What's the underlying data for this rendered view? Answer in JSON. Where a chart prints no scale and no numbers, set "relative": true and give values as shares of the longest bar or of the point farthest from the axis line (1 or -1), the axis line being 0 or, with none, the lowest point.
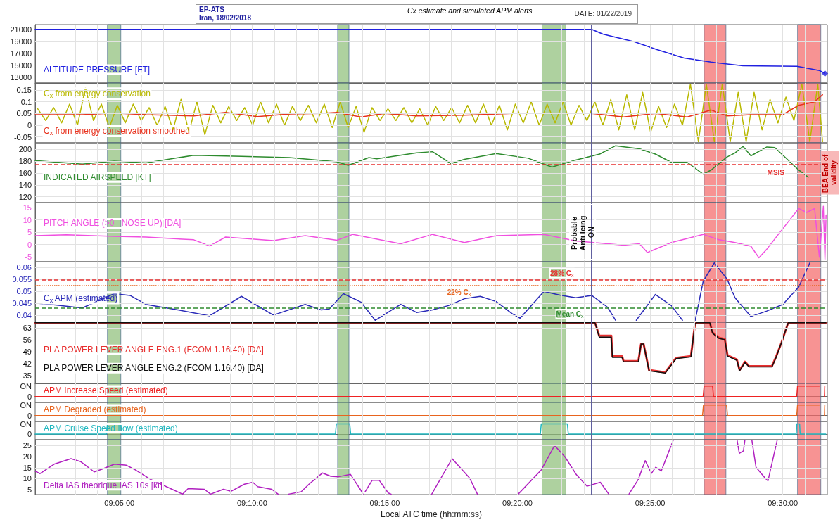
{
  "chart_data": [
    {
      "type": "line",
      "title": "Cx estimate and simulated APM alerts",
      "annotations": [
        "EP-ATS",
        "Iran, 18/02/2018",
        "DATE: 01/22/2019"
      ],
      "xlim": [
        9.0304,
        9.528
      ],
      "ylim": [
        12000,
        21800
      ],
      "yticks": [
        13000,
        15000,
        17000,
        19000,
        21000
      ],
      "xticks": [
        9.04167,
        9.05556,
        9.06944,
        9.08333,
        9.09722,
        9.11111,
        9.125,
        9.13889,
        9.15278,
        9.16667,
        9.18056,
        9.19444,
        9.20833,
        9.22222,
        9.23611,
        9.25,
        9.26389,
        9.27778,
        9.29167,
        9.30556,
        9.31944,
        9.33333,
        9.34722,
        9.36111,
        9.375,
        9.38889,
        9.40278,
        9.41667,
        9.43056,
        9.44444,
        9.45833,
        9.47222,
        9.48611,
        9.5,
        9.51389
      ],
      "tick_labels": "y",
      "grid": true,
      "series": [
        {
          "name": "ALTITUDE PRESSURE [FT]",
          "color": "#2020e0",
          "x": [
            9.0304,
            9.38,
            9.387,
            9.407,
            9.421,
            9.438,
            9.455,
            9.475,
            9.509,
            9.523,
            9.5265
          ],
          "values": [
            21000,
            21000,
            20200,
            18900,
            17600,
            16200,
            15500,
            14900,
            14800,
            14100,
            13600
          ]
        },
        {
          "type": "scatter",
          "marker": "diamond",
          "color": "#2020e0",
          "x": [
            9.5265
          ],
          "values": [
            13600
          ]
        }
      ],
      "bands": [
        {
          "axis": "x",
          "from": 9.0758,
          "to": 9.0842,
          "color": "#8fbf7a"
        },
        {
          "axis": "x",
          "from": 9.2204,
          "to": 9.2275,
          "color": "#8fbf7a"
        },
        {
          "axis": "x",
          "from": 9.3488,
          "to": 9.3638,
          "color": "#8fbf7a"
        },
        {
          "axis": "x",
          "from": 9.4506,
          "to": 9.4643,
          "color": "#f46a6a"
        },
        {
          "axis": "x",
          "from": 9.5093,
          "to": 9.5239,
          "color": "#f46a6a"
        }
      ],
      "ref_lines": [
        {
          "axis": "x",
          "value": 9.3796,
          "color": "#6060a0",
          "line_style": "solid"
        }
      ]
    },
    {
      "type": "line",
      "xlim": [
        9.0304,
        9.528
      ],
      "ylim": [
        -0.075,
        0.18
      ],
      "yticks": [
        -0.05,
        0,
        0.05,
        0.1,
        0.15
      ],
      "xticks": [
        9.04167,
        9.05556,
        9.06944,
        9.08333,
        9.09722,
        9.11111,
        9.125,
        9.13889,
        9.15278,
        9.16667,
        9.18056,
        9.19444,
        9.20833,
        9.22222,
        9.23611,
        9.25,
        9.26389,
        9.27778,
        9.29167,
        9.30556,
        9.31944,
        9.33333,
        9.34722,
        9.36111,
        9.375,
        9.38889,
        9.40278,
        9.41667,
        9.43056,
        9.44444,
        9.45833,
        9.47222,
        9.48611,
        9.5,
        9.51389
      ],
      "tick_labels": "y",
      "grid": true,
      "series": [
        {
          "name": "C$_{x}$ from energy conservation",
          "color": "#b8b800",
          "x": [
            9.032,
            9.037,
            9.042,
            9.047,
            9.052,
            9.057,
            9.062,
            9.067,
            9.072,
            9.077,
            9.082,
            9.087,
            9.092,
            9.097,
            9.102,
            9.107,
            9.112,
            9.117,
            9.122,
            9.127,
            9.132,
            9.137,
            9.142,
            9.147,
            9.152,
            9.157,
            9.162,
            9.167,
            9.172,
            9.177,
            9.182,
            9.187,
            9.192,
            9.197,
            9.202,
            9.207,
            9.212,
            9.217,
            9.222,
            9.227,
            9.232,
            9.237,
            9.242,
            9.247,
            9.252,
            9.257,
            9.262,
            9.267,
            9.272,
            9.277,
            9.282,
            9.287,
            9.292,
            9.297,
            9.302,
            9.307,
            9.312,
            9.317,
            9.322,
            9.327,
            9.332,
            9.337,
            9.342,
            9.347,
            9.352,
            9.357,
            9.362,
            9.367,
            9.372,
            9.377,
            9.382,
            9.387,
            9.392,
            9.397,
            9.402,
            9.407,
            9.412,
            9.417,
            9.422,
            9.427,
            9.432,
            9.437,
            9.442,
            9.447,
            9.452,
            9.457,
            9.462,
            9.467,
            9.472,
            9.477,
            9.482,
            9.487,
            9.492,
            9.497,
            9.502,
            9.507,
            9.512,
            9.517,
            9.522,
            9.525
          ],
          "values": [
            0.07,
            0.02,
            0.075,
            0.01,
            0.09,
            0,
            0.16,
            0.02,
            0.09,
            -0.01,
            0.085,
            0.01,
            0.09,
            0.02,
            0.075,
            0,
            0.08,
            -0.02,
            0.11,
            -0.03,
            0.1,
            -0.04,
            0.085,
            0.01,
            0.08,
            0.02,
            0.075,
            0,
            0.1,
            0.01,
            0.09,
            0,
            0.08,
            0.02,
            0.085,
            0.01,
            0.09,
            -0.01,
            0.1,
            -0.01,
            0.08,
            -0.03,
            0.075,
            0.02,
            0.07,
            0.02,
            0.075,
            0.01,
            0.07,
            0,
            0.08,
            0.02,
            0.075,
            0.01,
            0.085,
            0.01,
            0.09,
            0,
            0.085,
            -0.02,
            0.09,
            0.01,
            0.1,
            0,
            0.09,
            0.01,
            0.1,
            0,
            0.085,
            0.02,
            0.1,
            0,
            0.11,
            -0.02,
            0.13,
            -0.02,
            0.14,
            -0.03,
            0.08,
            -0.01,
            0.09,
            0,
            0.175,
            -0.07,
            0.175,
            -0.07,
            0.175,
            -0.07,
            0.14,
            -0.07,
            0.14,
            -0.02,
            0.11,
            0.01,
            0.12,
            0.02,
            0.175,
            -0.07,
            0.175,
            -0.07
          ]
        },
        {
          "name": "C$_{x}$ from energy conservation smoothed",
          "color": "#e8321e",
          "x": [
            9.0304,
            9.06,
            9.08,
            9.1,
            9.13,
            9.15,
            9.17,
            9.19,
            9.21,
            9.22,
            9.235,
            9.25,
            9.27,
            9.3,
            9.33,
            9.36,
            9.38,
            9.4,
            9.42,
            9.44,
            9.455,
            9.465,
            9.48,
            9.5,
            9.51,
            9.52,
            9.525
          ],
          "values": [
            0.045,
            0.045,
            0.052,
            0.045,
            0.04,
            0.055,
            0.037,
            0.048,
            0.05,
            0.055,
            0.035,
            0.05,
            0.04,
            0.043,
            0.05,
            0.05,
            0.05,
            0.035,
            0.05,
            0.035,
            0.065,
            0.04,
            0.045,
            0.045,
            0.085,
            0.1,
            0.13
          ]
        }
      ],
      "bands": [
        {
          "axis": "x",
          "from": 9.0758,
          "to": 9.0842,
          "color": "#8fbf7a"
        },
        {
          "axis": "x",
          "from": 9.2204,
          "to": 9.2275,
          "color": "#8fbf7a"
        },
        {
          "axis": "x",
          "from": 9.3488,
          "to": 9.3638,
          "color": "#8fbf7a"
        },
        {
          "axis": "x",
          "from": 9.4506,
          "to": 9.4643,
          "color": "#f46a6a"
        },
        {
          "axis": "x",
          "from": 9.5093,
          "to": 9.5239,
          "color": "#f46a6a"
        }
      ],
      "ref_lines": [
        {
          "axis": "x",
          "value": 9.3796,
          "color": "#6060a0",
          "line_style": "solid"
        }
      ]
    },
    {
      "type": "line",
      "xlim": [
        9.0304,
        9.528
      ],
      "ylim": [
        110,
        211
      ],
      "yticks": [
        120,
        140,
        160,
        180,
        200
      ],
      "xticks": [
        9.04167,
        9.05556,
        9.06944,
        9.08333,
        9.09722,
        9.11111,
        9.125,
        9.13889,
        9.15278,
        9.16667,
        9.18056,
        9.19444,
        9.20833,
        9.22222,
        9.23611,
        9.25,
        9.26389,
        9.27778,
        9.29167,
        9.30556,
        9.31944,
        9.33333,
        9.34722,
        9.36111,
        9.375,
        9.38889,
        9.40278,
        9.41667,
        9.43056,
        9.44444,
        9.45833,
        9.47222,
        9.48611,
        9.5,
        9.51389
      ],
      "tick_labels": "y",
      "grid": true,
      "series": [
        {
          "name": "INDICATED AIRSPEED [KT]",
          "color": "#2e8b2e",
          "x": [
            9.0304,
            9.06,
            9.08,
            9.1,
            9.13,
            9.16,
            9.19,
            9.22,
            9.227,
            9.24,
            9.245,
            9.27,
            9.28,
            9.2915,
            9.3,
            9.32,
            9.34,
            9.355,
            9.37,
            9.385,
            9.395,
            9.41,
            9.42,
            9.43,
            9.44,
            9.45,
            9.455,
            9.465,
            9.47,
            9.475,
            9.48,
            9.49,
            9.495,
            9.51,
            9.516
          ],
          "values": [
            181,
            175,
            180,
            177,
            190,
            188,
            186,
            179,
            173,
            186,
            184,
            194,
            196,
            176,
            183,
            193,
            185,
            170,
            182,
            192,
            206,
            201,
            192,
            178,
            178,
            158,
            165,
            187,
            194,
            205,
            189,
            204,
            203,
            165,
            153
          ]
        }
      ],
      "bands": [
        {
          "axis": "x",
          "from": 9.0758,
          "to": 9.0842,
          "color": "#8fbf7a"
        },
        {
          "axis": "x",
          "from": 9.2204,
          "to": 9.2275,
          "color": "#8fbf7a"
        },
        {
          "axis": "x",
          "from": 9.3488,
          "to": 9.3638,
          "color": "#8fbf7a"
        },
        {
          "axis": "x",
          "from": 9.4506,
          "to": 9.4643,
          "color": "#f46a6a"
        },
        {
          "axis": "x",
          "from": 9.5093,
          "to": 9.5239,
          "color": "#f46a6a",
          "label": "BEA End of validity"
        }
      ],
      "ref_lines": [
        {
          "axis": "y",
          "value": 175,
          "label": "MSIS",
          "color": "#e83030",
          "line_style": "dashed"
        },
        {
          "axis": "x",
          "value": 9.3796,
          "color": "#6060a0",
          "line_style": "solid"
        }
      ]
    },
    {
      "type": "line",
      "xlim": [
        9.0304,
        9.528
      ],
      "ylim": [
        -7,
        17
      ],
      "yticks": [
        -5,
        0,
        5,
        10,
        15
      ],
      "xticks": [
        9.04167,
        9.05556,
        9.06944,
        9.08333,
        9.09722,
        9.11111,
        9.125,
        9.13889,
        9.15278,
        9.16667,
        9.18056,
        9.19444,
        9.20833,
        9.22222,
        9.23611,
        9.25,
        9.26389,
        9.27778,
        9.29167,
        9.30556,
        9.31944,
        9.33333,
        9.34722,
        9.36111,
        9.375,
        9.38889,
        9.40278,
        9.41667,
        9.43056,
        9.44444,
        9.45833,
        9.47222,
        9.48611,
        9.5,
        9.51389
      ],
      "tick_labels": "y",
      "grid": true,
      "series": [
        {
          "name": "PITCH ANGLE (>0= NOSE UP) [DA]",
          "color": "#f050e0",
          "x": [
            9.0304,
            9.05,
            9.08,
            9.1,
            9.13,
            9.14,
            9.15,
            9.18,
            9.2,
            9.22,
            9.23,
            9.26,
            9.28,
            9.3,
            9.32,
            9.35,
            9.37,
            9.4,
            9.41,
            9.415,
            9.43,
            9.45,
            9.46,
            9.47,
            9.48,
            9.485,
            9.49,
            9.5,
            9.51,
            9.515,
            9.52,
            9.523,
            9.5255,
            9.5265,
            9.5272
          ],
          "values": [
            3.6,
            3.9,
            3.3,
            3,
            1.9,
            -0.6,
            3,
            1.6,
            3.6,
            1.7,
            4.1,
            0.3,
            4.1,
            0.8,
            3.6,
            4.1,
            1.4,
            -0.3,
            0.3,
            -3.3,
            0.8,
            4.1,
            1.9,
            0.8,
            -0.7,
            -5.4,
            -1.9,
            6.4,
            14.6,
            13,
            14.6,
            -5.2,
            15.5,
            -6,
            12
          ]
        }
      ],
      "bands": [
        {
          "axis": "x",
          "from": 9.0758,
          "to": 9.0842,
          "color": "#8fbf7a"
        },
        {
          "axis": "x",
          "from": 9.2204,
          "to": 9.2275,
          "color": "#8fbf7a"
        },
        {
          "axis": "x",
          "from": 9.3488,
          "to": 9.3638,
          "color": "#8fbf7a"
        },
        {
          "axis": "x",
          "from": 9.4506,
          "to": 9.4643,
          "color": "#f46a6a"
        },
        {
          "axis": "x",
          "from": 9.5093,
          "to": 9.5239,
          "color": "#f46a6a"
        }
      ],
      "ref_lines": [
        {
          "axis": "x",
          "value": 9.3796,
          "label": "Probable Anti Icing ON",
          "color": "#6060a0",
          "line_style": "solid"
        }
      ]
    },
    {
      "type": "line",
      "xlim": [
        9.0304,
        9.528
      ],
      "ylim": [
        0.037,
        0.0625
      ],
      "yticks": [
        0.04,
        0.045,
        0.05,
        0.055,
        0.06
      ],
      "xticks": [
        9.04167,
        9.05556,
        9.06944,
        9.08333,
        9.09722,
        9.11111,
        9.125,
        9.13889,
        9.15278,
        9.16667,
        9.18056,
        9.19444,
        9.20833,
        9.22222,
        9.23611,
        9.25,
        9.26389,
        9.27778,
        9.29167,
        9.30556,
        9.31944,
        9.33333,
        9.34722,
        9.36111,
        9.375,
        9.38889,
        9.40278,
        9.41667,
        9.43056,
        9.44444,
        9.45833,
        9.47222,
        9.48611,
        9.5,
        9.51389
      ],
      "tick_labels": "y",
      "grid": true,
      "series": [
        {
          "name": "C$_{x}$ APM (estimated)",
          "color": "#2a2ab8",
          "x": [
            9.0304,
            9.04,
            9.06,
            9.08,
            9.09,
            9.1,
            9.12,
            9.14,
            9.16,
            9.18,
            9.2,
            9.21,
            9.215,
            9.224,
            9.235,
            9.244,
            9.26,
            9.27,
            9.28,
            9.29,
            9.3,
            9.31,
            9.32,
            9.33,
            9.335,
            9.35,
            9.36,
            9.37,
            9.38,
            9.39,
            9.395,
            9.401,
            9.408,
            9.42,
            9.43,
            9.437,
            9.441,
            9.445,
            9.45,
            9.457,
            9.465,
            9.47,
            9.48,
            9.49,
            9.5,
            9.51,
            9.517
          ],
          "values": [
            0.0451,
            0.0445,
            0.043,
            0.049,
            0.0483,
            0.0445,
            0.0422,
            0.0397,
            0.0479,
            0.04,
            0.0445,
            0.0422,
            0.0425,
            0.049,
            0.0455,
            0.0378,
            0.0445,
            0.0411,
            0.0422,
            0.044,
            0.0469,
            0.0479,
            0.0457,
            0.0406,
            0.0387,
            0.05,
            0.0484,
            0.0473,
            0.0483,
            0.0433,
            0.0378,
            null,
            0.0378,
            0.0487,
            0.044,
            0.0378,
            null,
            0.0378,
            0.0542,
            0.062,
            0.0552,
            0.0473,
            0.0394,
            0.0417,
            0.0445,
            0.0518,
            0.062
          ]
        }
      ],
      "bands": [
        {
          "axis": "x",
          "from": 9.0758,
          "to": 9.0842,
          "color": "#8fbf7a"
        },
        {
          "axis": "x",
          "from": 9.2204,
          "to": 9.2275,
          "color": "#8fbf7a"
        },
        {
          "axis": "x",
          "from": 9.3488,
          "to": 9.3638,
          "color": "#8fbf7a"
        },
        {
          "axis": "x",
          "from": 9.4506,
          "to": 9.4643,
          "color": "#f46a6a"
        },
        {
          "axis": "x",
          "from": 9.5093,
          "to": 9.5239,
          "color": "#f46a6a"
        }
      ],
      "ref_lines": [
        {
          "axis": "y",
          "value": 0.055,
          "label": "28% C$_{x}$",
          "color": "#e83030",
          "line_style": "dashed"
        },
        {
          "axis": "y",
          "value": 0.0524,
          "label": "22% C$_{x}$",
          "color": "#e8641e",
          "line_style": "dotted"
        },
        {
          "axis": "y",
          "value": 0.0431,
          "label": "Mean C$_{x}$",
          "color": "#2e8b2e",
          "line_style": "dashed"
        },
        {
          "axis": "x",
          "value": 9.3796,
          "color": "#6060a0",
          "line_style": "solid"
        }
      ]
    },
    {
      "type": "line",
      "xlim": [
        9.0304,
        9.528
      ],
      "ylim": [
        30.5,
        66.3
      ],
      "yticks": [
        35,
        42,
        49,
        56,
        63
      ],
      "xticks": [
        9.04167,
        9.05556,
        9.06944,
        9.08333,
        9.09722,
        9.11111,
        9.125,
        9.13889,
        9.15278,
        9.16667,
        9.18056,
        9.19444,
        9.20833,
        9.22222,
        9.23611,
        9.25,
        9.26389,
        9.27778,
        9.29167,
        9.30556,
        9.31944,
        9.33333,
        9.34722,
        9.36111,
        9.375,
        9.38889,
        9.40278,
        9.41667,
        9.43056,
        9.44444,
        9.45833,
        9.47222,
        9.48611,
        9.5,
        9.51389
      ],
      "tick_labels": "y",
      "grid": true,
      "series": [
        {
          "name": "PLA POWER LEVER ANGLE ENG.1 (FCOM 1.16.40) [DA]",
          "color": "#e83030",
          "x": [
            9.0304,
            9.3821,
            9.3847,
            9.3923,
            9.393,
            9.3991,
            9.4,
            9.4093,
            9.411,
            9.4126,
            9.416,
            9.4262,
            9.433,
            9.4423,
            9.4449,
            9.446,
            9.4542,
            9.4559,
            9.46,
            9.4636,
            9.4653,
            9.4712,
            9.4729,
            9.4763,
            9.4788,
            9.4932,
            9.4958,
            9.4992,
            9.5034,
            9.5271
          ],
          "values": [
            66,
            66,
            58.4,
            58.4,
            46.3,
            46.3,
            43.6,
            43.6,
            53.5,
            53.5,
            38.3,
            37,
            45.4,
            46.4,
            65.5,
            66,
            66,
            60.3,
            57.2,
            56.4,
            46.9,
            44.4,
            38.3,
            43.2,
            40.6,
            40.6,
            46.1,
            54.4,
            66,
            66
          ]
        },
        {
          "name": "PLA POWER LEVER ANGLE ENG.2 (FCOM 1.16.40) [DA]",
          "color": "#101010",
          "x": [
            9.0304,
            9.3821,
            9.3847,
            9.3923,
            9.393,
            9.3991,
            9.4,
            9.4093,
            9.411,
            9.4126,
            9.416,
            9.4262,
            9.433,
            9.4423,
            9.4449,
            9.446,
            9.4542,
            9.4559,
            9.46,
            9.4636,
            9.4653,
            9.4712,
            9.4729,
            9.4763,
            9.4788,
            9.4932,
            9.4958,
            9.4992,
            9.5034,
            9.5271
          ],
          "values": [
            66,
            66,
            57.6,
            57.6,
            45.7,
            45.7,
            43.2,
            43.2,
            53.5,
            53.5,
            37.9,
            36.6,
            45,
            46,
            65.5,
            66,
            66,
            59.9,
            56.8,
            56,
            46.5,
            44,
            37.9,
            42.8,
            40.2,
            40.2,
            45.7,
            54.4,
            66,
            66
          ]
        }
      ],
      "bands": [
        {
          "axis": "x",
          "from": 9.0758,
          "to": 9.0842,
          "color": "#8fbf7a"
        },
        {
          "axis": "x",
          "from": 9.2204,
          "to": 9.2275,
          "color": "#8fbf7a"
        },
        {
          "axis": "x",
          "from": 9.3488,
          "to": 9.3638,
          "color": "#8fbf7a"
        },
        {
          "axis": "x",
          "from": 9.4506,
          "to": 9.4643,
          "color": "#f46a6a"
        },
        {
          "axis": "x",
          "from": 9.5093,
          "to": 9.5239,
          "color": "#f46a6a"
        }
      ],
      "ref_lines": [
        {
          "axis": "x",
          "value": 9.3796,
          "color": "#6060a0",
          "line_style": "solid"
        }
      ]
    },
    {
      "type": "line",
      "relative": true,
      "annotations": [
        "ON",
        "0"
      ],
      "xlim": [
        9.0304,
        9.528
      ],
      "xticks": [
        9.04167,
        9.05556,
        9.06944,
        9.08333,
        9.09722,
        9.11111,
        9.125,
        9.13889,
        9.15278,
        9.16667,
        9.18056,
        9.19444,
        9.20833,
        9.22222,
        9.23611,
        9.25,
        9.26389,
        9.27778,
        9.29167,
        9.30556,
        9.31944,
        9.33333,
        9.34722,
        9.36111,
        9.375,
        9.38889,
        9.40278,
        9.41667,
        9.43056,
        9.44444,
        9.45833,
        9.47222,
        9.48611,
        9.5,
        9.51389
      ],
      "tick_labels": "y",
      "grid": "x",
      "series": [
        {
          "name": "APM Increase Speed (estimated)",
          "color": "#ee2222",
          "x": [
            9.0304,
            9.45,
            9.4506,
            9.4559,
            9.4565,
            9.5088,
            9.5093,
            9.5229,
            9.5245,
            9.5262,
            9.5264
          ],
          "values": [
            0,
            0,
            1,
            1,
            0,
            0,
            1,
            1,
            null,
            0,
            1
          ]
        }
      ],
      "bands": [
        {
          "axis": "x",
          "from": 9.0758,
          "to": 9.0842,
          "color": "#8fbf7a"
        },
        {
          "axis": "x",
          "from": 9.2204,
          "to": 9.2275,
          "color": "#8fbf7a"
        },
        {
          "axis": "x",
          "from": 9.3488,
          "to": 9.3638,
          "color": "#8fbf7a"
        },
        {
          "axis": "x",
          "from": 9.4506,
          "to": 9.4643,
          "color": "#f46a6a"
        },
        {
          "axis": "x",
          "from": 9.5093,
          "to": 9.5239,
          "color": "#f46a6a"
        }
      ],
      "ref_lines": [
        {
          "axis": "x",
          "value": 9.3796,
          "color": "#6060a0",
          "line_style": "solid"
        }
      ]
    },
    {
      "type": "line",
      "relative": true,
      "annotations": [
        "ON",
        "0"
      ],
      "xlim": [
        9.0304,
        9.528
      ],
      "xticks": [
        9.04167,
        9.05556,
        9.06944,
        9.08333,
        9.09722,
        9.11111,
        9.125,
        9.13889,
        9.15278,
        9.16667,
        9.18056,
        9.19444,
        9.20833,
        9.22222,
        9.23611,
        9.25,
        9.26389,
        9.27778,
        9.29167,
        9.30556,
        9.31944,
        9.33333,
        9.34722,
        9.36111,
        9.375,
        9.38889,
        9.40278,
        9.41667,
        9.43056,
        9.44444,
        9.45833,
        9.47222,
        9.48611,
        9.5,
        9.51389
      ],
      "tick_labels": "y",
      "grid": "x",
      "series": [
        {
          "name": "APM Degraded (estimated)",
          "color": "#e8641e",
          "x": [
            9.0304,
            9.4496,
            9.4502,
            9.4647,
            9.4653,
            9.5088,
            9.5093,
            9.5229,
            9.5245,
            9.5262,
            9.5264
          ],
          "values": [
            0,
            0,
            1,
            1,
            0,
            0,
            1,
            1,
            null,
            0,
            1
          ]
        }
      ],
      "bands": [
        {
          "axis": "x",
          "from": 9.0758,
          "to": 9.0842,
          "color": "#8fbf7a"
        },
        {
          "axis": "x",
          "from": 9.2204,
          "to": 9.2275,
          "color": "#8fbf7a"
        },
        {
          "axis": "x",
          "from": 9.3488,
          "to": 9.3638,
          "color": "#8fbf7a"
        },
        {
          "axis": "x",
          "from": 9.4506,
          "to": 9.4643,
          "color": "#f46a6a"
        },
        {
          "axis": "x",
          "from": 9.5093,
          "to": 9.5239,
          "color": "#f46a6a"
        }
      ],
      "ref_lines": [
        {
          "axis": "x",
          "value": 9.3796,
          "color": "#6060a0",
          "line_style": "solid"
        }
      ]
    },
    {
      "type": "line",
      "relative": true,
      "annotations": [
        "ON",
        "0"
      ],
      "xlim": [
        9.0304,
        9.528
      ],
      "xticks": [
        9.04167,
        9.05556,
        9.06944,
        9.08333,
        9.09722,
        9.11111,
        9.125,
        9.13889,
        9.15278,
        9.16667,
        9.18056,
        9.19444,
        9.20833,
        9.22222,
        9.23611,
        9.25,
        9.26389,
        9.27778,
        9.29167,
        9.30556,
        9.31944,
        9.33333,
        9.34722,
        9.36111,
        9.375,
        9.38889,
        9.40278,
        9.41667,
        9.43056,
        9.44444,
        9.45833,
        9.47222,
        9.48611,
        9.5,
        9.51389
      ],
      "tick_labels": "y",
      "grid": "x",
      "series": [
        {
          "name": "APM Cruise Speed Low (estimated)",
          "color": "#20b8c0",
          "x": [
            9.0304,
            9.0752,
            9.0758,
            9.0842,
            9.0848,
            9.219,
            9.2196,
            9.228,
            9.2286,
            9.3477,
            9.3483,
            9.3647,
            9.3653,
            9.5085,
            9.5088,
            9.5106,
            9.5109,
            9.527
          ],
          "values": [
            0,
            0,
            1,
            1,
            0,
            0,
            1,
            1,
            0,
            0,
            1,
            1,
            0,
            0,
            1,
            1,
            0,
            0
          ]
        }
      ],
      "bands": [
        {
          "axis": "x",
          "from": 9.0758,
          "to": 9.0842,
          "color": "#8fbf7a"
        },
        {
          "axis": "x",
          "from": 9.2204,
          "to": 9.2275,
          "color": "#8fbf7a"
        },
        {
          "axis": "x",
          "from": 9.3488,
          "to": 9.3638,
          "color": "#8fbf7a"
        },
        {
          "axis": "x",
          "from": 9.4506,
          "to": 9.4643,
          "color": "#f46a6a"
        },
        {
          "axis": "x",
          "from": 9.5093,
          "to": 9.5239,
          "color": "#f46a6a"
        }
      ],
      "ref_lines": [
        {
          "axis": "x",
          "value": 9.3796,
          "color": "#6060a0",
          "line_style": "solid"
        }
      ]
    },
    {
      "type": "line",
      "xlabel": "Local ATC time (hh:mm:ss)",
      "xlim": [
        9.0304,
        9.528
      ],
      "ylim": [
        2.8,
        27.7
      ],
      "yticks": [
        5,
        10,
        15,
        20,
        25
      ],
      "xticks": [
        {
          "value": 9.04167,
          "label": null
        },
        {
          "value": 9.05556,
          "label": null
        },
        {
          "value": 9.06944,
          "label": null
        },
        {
          "value": 9.08333,
          "label": "09:05:00"
        },
        {
          "value": 9.09722,
          "label": null
        },
        {
          "value": 9.11111,
          "label": null
        },
        {
          "value": 9.125,
          "label": null
        },
        {
          "value": 9.13889,
          "label": null
        },
        {
          "value": 9.15278,
          "label": null
        },
        {
          "value": 9.16667,
          "label": "09:10:00"
        },
        {
          "value": 9.18056,
          "label": null
        },
        {
          "value": 9.19444,
          "label": null
        },
        {
          "value": 9.20833,
          "label": null
        },
        {
          "value": 9.22222,
          "label": null
        },
        {
          "value": 9.23611,
          "label": null
        },
        {
          "value": 9.25,
          "label": "09:15:00"
        },
        {
          "value": 9.26389,
          "label": null
        },
        {
          "value": 9.27778,
          "label": null
        },
        {
          "value": 9.29167,
          "label": null
        },
        {
          "value": 9.30556,
          "label": null
        },
        {
          "value": 9.31944,
          "label": null
        },
        {
          "value": 9.33333,
          "label": "09:20:00"
        },
        {
          "value": 9.34722,
          "label": null
        },
        {
          "value": 9.36111,
          "label": null
        },
        {
          "value": 9.375,
          "label": null
        },
        {
          "value": 9.38889,
          "label": null
        },
        {
          "value": 9.40278,
          "label": null
        },
        {
          "value": 9.41667,
          "label": "09:25:00"
        },
        {
          "value": 9.43056,
          "label": null
        },
        {
          "value": 9.44444,
          "label": null
        },
        {
          "value": 9.45833,
          "label": null
        },
        {
          "value": 9.47222,
          "label": null
        },
        {
          "value": 9.48611,
          "label": null
        },
        {
          "value": 9.5,
          "label": "09:30:00"
        },
        {
          "value": 9.51389,
          "label": null
        }
      ],
      "grid": true,
      "series": [
        {
          "name": "Delta IAS theorique IAS 10s [kt]",
          "color": "#b020c0",
          "x": [
            9.0304,
            9.0335,
            9.0423,
            9.0529,
            9.0591,
            9.0675,
            9.0723,
            9.0802,
            9.0877,
            9.0926,
            9.1027,
            9.1164,
            9.123,
            9.1265,
            9.1367,
            9.1406,
            9.1486,
            9.1534,
            9.1618,
            9.1671,
            9.1702,
            9.179,
            9.183,
            9.186,
            9.1896,
            9.1975,
            9.2024,
            9.2108,
            9.2161,
            9.2209,
            9.2284,
            9.2346,
            9.2363,
            9.237,
            9.2377,
            9.2421,
            9.2465,
            9.2522,
            9.254,
            9.26,
            9.2795,
            9.2923,
            9.3034,
            9.3082,
            9.32,
            9.3338,
            9.3483,
            9.3567,
            9.3633,
            9.3704,
            9.377,
            9.3854,
            9.3907,
            9.397,
            9.4034,
            9.4092,
            9.4136,
            9.4175,
            9.4202,
            9.4237,
            9.4312,
            9.45,
            9.4713,
            9.4727,
            9.4753,
            9.4762,
            9.478,
            9.4806,
            9.4832,
            9.489,
            9.4907,
            9.4965
          ],
          "values": [
            13.4,
            12.3,
            16.6,
            19.1,
            17.7,
            13.1,
            14.3,
            16.6,
            16.1,
            14.3,
            9.8,
            5.2,
            3,
            5.5,
            5.2,
            3,
            5.2,
            4.3,
            7.5,
            8.4,
            6.4,
            5.2,
            3,
            null,
            3,
            4.1,
            7.5,
            12.6,
            11.1,
            10.9,
            12,
            5.2,
            3,
            null,
            4.1,
            9.3,
            9.3,
            3.5,
            3,
            null,
            3,
            19.1,
            10.2,
            3,
            null,
            3,
            14,
            25.1,
            19.8,
            11.8,
            6.6,
            8.4,
            3,
            null,
            3,
            9.6,
            18.2,
            12.4,
            15.2,
            13.5,
            27.5,
            null,
            27.5,
            21.5,
            22.6,
            27.5,
            null,
            27.5,
            15.2,
            10.2,
            9,
            27.5
          ]
        }
      ],
      "bands": [
        {
          "axis": "x",
          "from": 9.0758,
          "to": 9.0842,
          "color": "#8fbf7a"
        },
        {
          "axis": "x",
          "from": 9.2204,
          "to": 9.2275,
          "color": "#8fbf7a"
        },
        {
          "axis": "x",
          "from": 9.3488,
          "to": 9.3638,
          "color": "#8fbf7a"
        },
        {
          "axis": "x",
          "from": 9.4506,
          "to": 9.4643,
          "color": "#f46a6a"
        },
        {
          "axis": "x",
          "from": 9.5093,
          "to": 9.5239,
          "color": "#f46a6a"
        }
      ],
      "ref_lines": [
        {
          "axis": "x",
          "value": 9.3796,
          "color": "#6060a0",
          "line_style": "solid"
        }
      ]
    }
  ]
}
